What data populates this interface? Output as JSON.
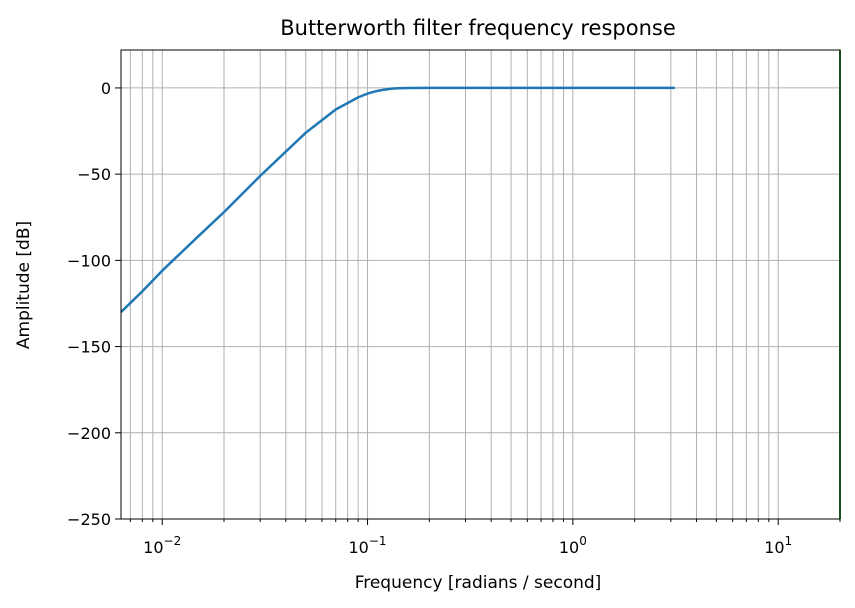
{
  "chart_data": {
    "type": "line",
    "title": "Butterworth filter frequency response",
    "xlabel": "Frequency [radians / second]",
    "ylabel": "Amplitude [dB]",
    "x_scale": "log",
    "xlim": [
      0.0063,
      20
    ],
    "ylim": [
      -250,
      22
    ],
    "grid": "both",
    "x_ticks": [
      {
        "value": 0.01,
        "base": "10",
        "exp": "−2"
      },
      {
        "value": 0.1,
        "base": "10",
        "exp": "−1"
      },
      {
        "value": 1,
        "base": "10",
        "exp": "0"
      },
      {
        "value": 10,
        "base": "10",
        "exp": "1"
      }
    ],
    "y_ticks": [
      {
        "value": 0,
        "label": "0"
      },
      {
        "value": -50,
        "label": "−50"
      },
      {
        "value": -100,
        "label": "−100"
      },
      {
        "value": -150,
        "label": "−150"
      },
      {
        "value": -200,
        "label": "−200"
      },
      {
        "value": -250,
        "label": "−250"
      }
    ],
    "series": [
      {
        "color": "#1f77b4",
        "x": [
          0.0063,
          0.008,
          0.01,
          0.015,
          0.02,
          0.03,
          0.05,
          0.07,
          0.09,
          0.1,
          0.11,
          0.12,
          0.13,
          0.14,
          0.16,
          0.2,
          0.3,
          0.5,
          1.0,
          2.0,
          3.14
        ],
        "y": [
          -130,
          -118,
          -106,
          -86,
          -72,
          -51,
          -26,
          -12.5,
          -5.5,
          -3.3,
          -1.9,
          -1.0,
          -0.5,
          -0.2,
          -0.05,
          0,
          0,
          0,
          0,
          0,
          0
        ]
      }
    ],
    "vline": {
      "x": 20,
      "color": "#2ca02c"
    }
  }
}
